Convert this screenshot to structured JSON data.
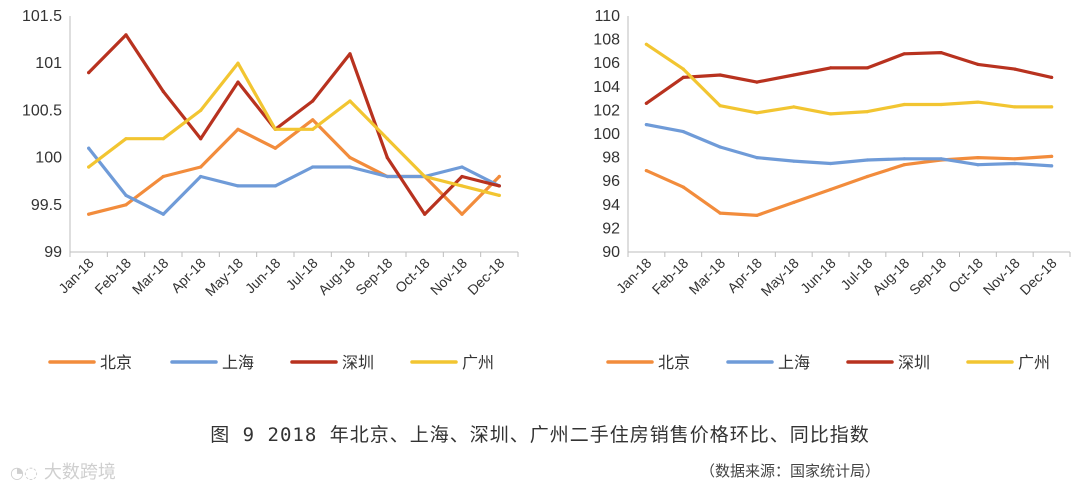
{
  "chart_data": [
    {
      "type": "line",
      "categories": [
        "Jan-18",
        "Feb-18",
        "Mar-18",
        "Apr-18",
        "May-18",
        "Jun-18",
        "Jul-18",
        "Aug-18",
        "Sep-18",
        "Oct-18",
        "Nov-18",
        "Dec-18"
      ],
      "ylim": [
        99,
        101.5
      ],
      "yticks": [
        "99",
        "99.5",
        "100",
        "100.5",
        "101",
        "101.5"
      ],
      "yticks_values": [
        99,
        99.5,
        100,
        100.5,
        101,
        101.5
      ],
      "grid": false,
      "legend_position": "bottom",
      "series": [
        {
          "name": "北京",
          "color": "#f28c3c",
          "values": [
            99.4,
            99.5,
            99.8,
            99.9,
            100.3,
            100.1,
            100.4,
            100.0,
            99.8,
            99.8,
            99.4,
            99.8
          ]
        },
        {
          "name": "上海",
          "color": "#6f9bd8",
          "values": [
            100.1,
            99.6,
            99.4,
            99.8,
            99.7,
            99.7,
            99.9,
            99.9,
            99.8,
            99.8,
            99.9,
            99.7
          ]
        },
        {
          "name": "深圳",
          "color": "#b8321f",
          "values": [
            100.9,
            101.3,
            100.7,
            100.2,
            100.8,
            100.3,
            100.6,
            101.1,
            100.0,
            99.4,
            99.8,
            99.7
          ]
        },
        {
          "name": "广州",
          "color": "#f2c531",
          "values": [
            99.9,
            100.2,
            100.2,
            100.5,
            101.0,
            100.3,
            100.3,
            100.6,
            100.2,
            99.8,
            99.7,
            99.6
          ]
        }
      ]
    },
    {
      "type": "line",
      "categories": [
        "Jan-18",
        "Feb-18",
        "Mar-18",
        "Apr-18",
        "May-18",
        "Jun-18",
        "Jul-18",
        "Aug-18",
        "Sep-18",
        "Oct-18",
        "Nov-18",
        "Dec-18"
      ],
      "ylim": [
        90,
        110
      ],
      "yticks": [
        "90",
        "92",
        "94",
        "96",
        "98",
        "100",
        "102",
        "104",
        "106",
        "108",
        "110"
      ],
      "yticks_values": [
        90,
        92,
        94,
        96,
        98,
        100,
        102,
        104,
        106,
        108,
        110
      ],
      "grid": false,
      "legend_position": "bottom",
      "series": [
        {
          "name": "北京",
          "color": "#f28c3c",
          "values": [
            96.9,
            95.5,
            93.3,
            93.1,
            94.2,
            95.3,
            96.4,
            97.4,
            97.8,
            98.0,
            97.9,
            98.1
          ]
        },
        {
          "name": "上海",
          "color": "#6f9bd8",
          "values": [
            100.8,
            100.2,
            98.9,
            98.0,
            97.7,
            97.5,
            97.8,
            97.9,
            97.9,
            97.4,
            97.5,
            97.3
          ]
        },
        {
          "name": "深圳",
          "color": "#b8321f",
          "values": [
            102.6,
            104.8,
            105.0,
            104.4,
            105.0,
            105.6,
            105.6,
            106.8,
            106.9,
            105.9,
            105.5,
            104.8
          ]
        },
        {
          "name": "广州",
          "color": "#f2c531",
          "values": [
            107.6,
            105.5,
            102.4,
            101.8,
            102.3,
            101.7,
            101.9,
            102.5,
            102.5,
            102.7,
            102.3,
            102.3
          ]
        }
      ]
    }
  ],
  "figure": {
    "caption": "图 9  2018 年北京、上海、深圳、广州二手住房销售价格环比、同比指数",
    "source": "（数据来源：国家统计局）",
    "watermark": "大数跨境"
  }
}
